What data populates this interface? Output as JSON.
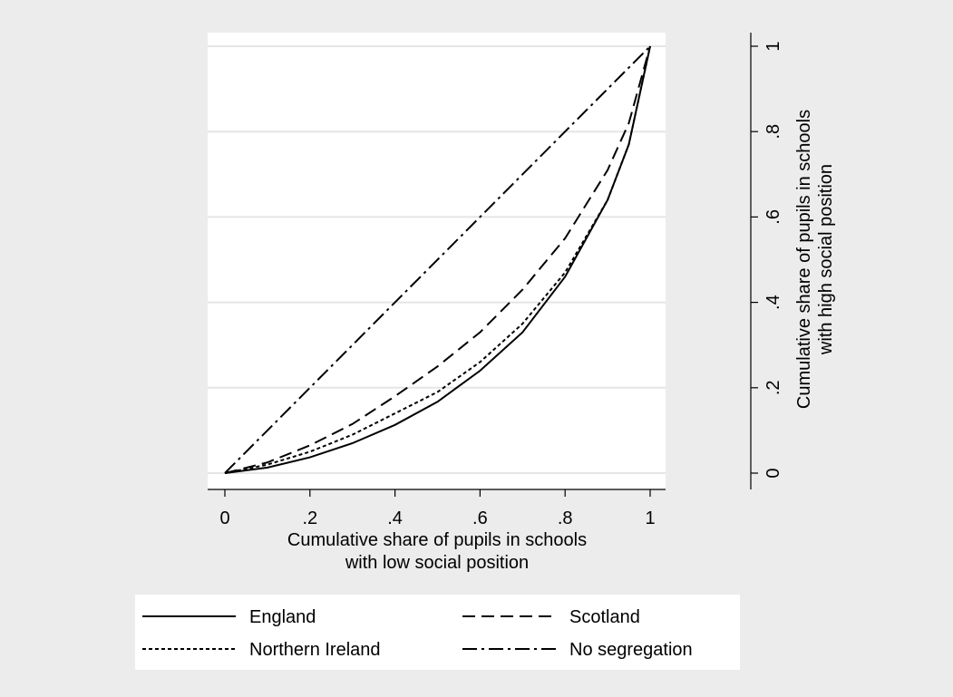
{
  "chart_data": {
    "type": "line",
    "title": "",
    "xlabel": [
      "Cumulative share of pupils in schools",
      "with low social position"
    ],
    "ylabel": [
      "Cumulative share of pupils in schools",
      "with high social position"
    ],
    "xlim": [
      0,
      1
    ],
    "ylim": [
      0,
      1
    ],
    "x_ticks": [
      0,
      0.2,
      0.4,
      0.6,
      0.8,
      1
    ],
    "x_tick_labels": [
      "0",
      ".2",
      ".4",
      ".6",
      ".8",
      "1"
    ],
    "y_ticks": [
      0,
      0.2,
      0.4,
      0.6,
      0.8,
      1
    ],
    "y_tick_labels": [
      "0",
      ".2",
      ".4",
      ".6",
      ".8",
      "1"
    ],
    "y_axis_position": "right",
    "grid": "horizontal",
    "legend_position": "bottom",
    "series": [
      {
        "name": "England",
        "style": "solid",
        "x": [
          0,
          0.1,
          0.2,
          0.3,
          0.4,
          0.5,
          0.6,
          0.7,
          0.8,
          0.9,
          0.95,
          1
        ],
        "y": [
          0,
          0.013,
          0.037,
          0.07,
          0.113,
          0.167,
          0.24,
          0.33,
          0.46,
          0.64,
          0.77,
          1
        ]
      },
      {
        "name": "Scotland",
        "style": "dashed",
        "x": [
          0,
          0.1,
          0.2,
          0.3,
          0.4,
          0.5,
          0.6,
          0.7,
          0.8,
          0.9,
          0.95,
          1
        ],
        "y": [
          0,
          0.025,
          0.065,
          0.115,
          0.18,
          0.25,
          0.33,
          0.43,
          0.55,
          0.71,
          0.82,
          1
        ]
      },
      {
        "name": "Northern Ireland",
        "style": "dotted",
        "x": [
          0,
          0.1,
          0.2,
          0.3,
          0.4,
          0.5,
          0.6,
          0.7,
          0.8,
          0.9,
          0.95,
          1
        ],
        "y": [
          0,
          0.02,
          0.05,
          0.09,
          0.14,
          0.19,
          0.26,
          0.35,
          0.47,
          0.64,
          0.77,
          1
        ]
      },
      {
        "name": "No segregation",
        "style": "dash-dot",
        "x": [
          0,
          1
        ],
        "y": [
          0,
          1
        ]
      }
    ]
  },
  "colors": {
    "page_background": "#ececec",
    "plot_background": "#ffffff",
    "gridline": "#e5e5e5",
    "line": "#000000"
  }
}
